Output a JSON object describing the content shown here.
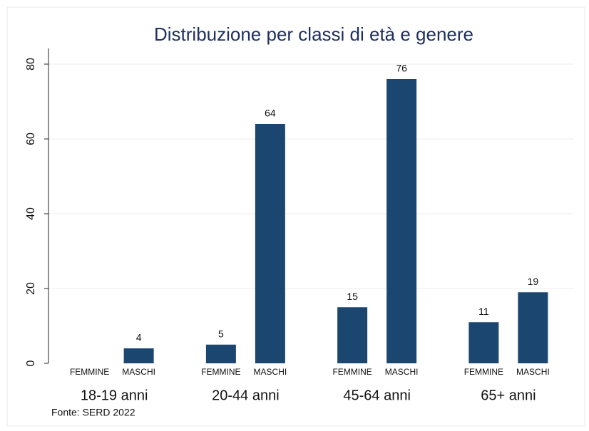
{
  "chart_data": {
    "type": "bar",
    "title": "Distribuzione per classi di età e genere",
    "note": "Fonte: SERD 2022",
    "categories": [
      "18-19 anni",
      "20-44 anni",
      "45-64 anni",
      "65+ anni"
    ],
    "series": [
      {
        "name": "FEMMINE",
        "color": "#1a4670",
        "values": [
          null,
          5,
          15,
          11
        ]
      },
      {
        "name": "MASCHI",
        "color": "#1a4670",
        "values": [
          4,
          64,
          76,
          19
        ]
      }
    ],
    "ylim": [
      0,
      80
    ],
    "yticks": [
      0,
      20,
      40,
      60,
      80
    ],
    "grid": true
  }
}
